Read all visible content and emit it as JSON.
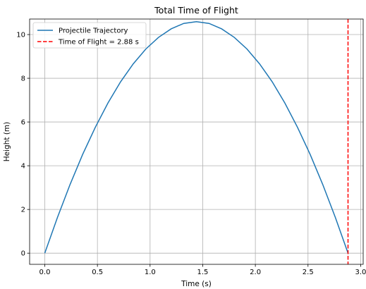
{
  "chart_data": {
    "type": "line",
    "title": "Total Time of Flight",
    "xlabel": "Time (s)",
    "ylabel": "Height (m)",
    "xlim": [
      -0.144,
      3.024
    ],
    "ylim": [
      -0.51,
      10.71
    ],
    "xticks": [
      "0.0",
      "0.5",
      "1.0",
      "1.5",
      "2.0",
      "2.5",
      "3.0"
    ],
    "yticks": [
      "0",
      "2",
      "4",
      "6",
      "8",
      "10"
    ],
    "grid": true,
    "legend_position": "top-left",
    "series": [
      {
        "name": "Projectile Trajectory",
        "color": "#1f77b4",
        "style": "solid",
        "x": [
          0.0,
          0.12,
          0.24,
          0.36,
          0.48,
          0.6,
          0.72,
          0.84,
          0.96,
          1.08,
          1.2,
          1.32,
          1.44,
          1.56,
          1.68,
          1.8,
          1.92,
          2.04,
          2.16,
          2.28,
          2.4,
          2.52,
          2.64,
          2.76,
          2.88
        ],
        "y": [
          0.0,
          1.63,
          3.14,
          4.52,
          5.76,
          6.87,
          7.84,
          8.66,
          9.34,
          9.87,
          10.26,
          10.51,
          10.59,
          10.51,
          10.26,
          9.87,
          9.34,
          8.66,
          7.84,
          6.87,
          5.76,
          4.52,
          3.14,
          1.63,
          0.0
        ]
      },
      {
        "name": "Time of Flight = 2.88 s",
        "color": "#ff0000",
        "style": "dashed",
        "vline_x": 2.88
      }
    ]
  }
}
